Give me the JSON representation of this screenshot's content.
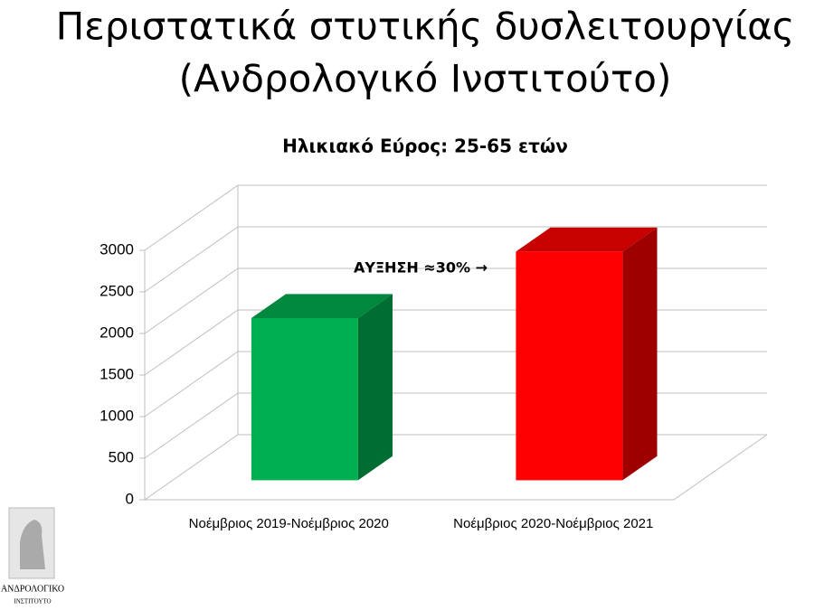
{
  "title_lines": [
    "Περιστατικά στυτικής δυσλειτουργίας",
    "(Ανδρολογικό Ινστιτούτο)"
  ],
  "logo": {
    "line1": "ΑΝΔΡΟΛΟΓΙΚΟ",
    "line2": "ΙΝΣΤΙΤΟΥΤΟ"
  },
  "chart_data": {
    "type": "bar3d",
    "title": "Ηλικιακό Εύρος: 25-65 ετών",
    "categories": [
      "Νοέμβριος 2019-Νοέμβριος 2020",
      "Νοέμβριος 2020-Νοέμβριος 2021"
    ],
    "values": [
      1950,
      2750
    ],
    "colors": [
      "#00b050",
      "#ff0000"
    ],
    "annotation": "ΑΥΞΗΣΗ ≈30% →",
    "ylim": [
      0,
      3000
    ],
    "yticks": [
      0,
      500,
      1000,
      1500,
      2000,
      2500,
      3000
    ],
    "grid": true
  }
}
